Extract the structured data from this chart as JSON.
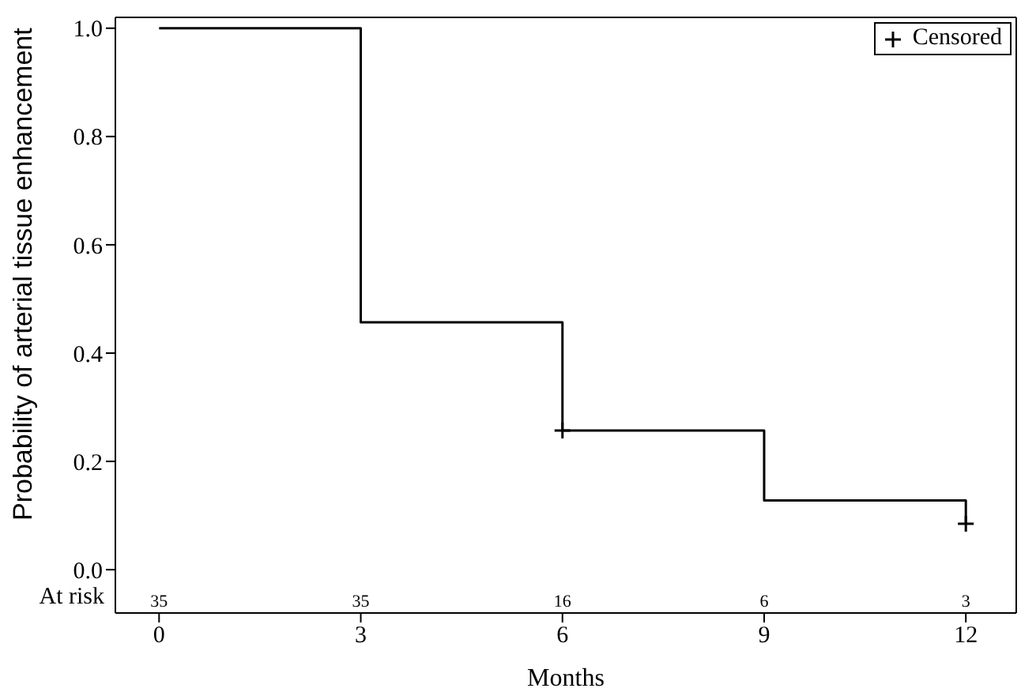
{
  "chart_data": {
    "type": "step",
    "xlabel": "Months",
    "ylabel": "Probability of arterial tissue enhancement",
    "x": [
      0,
      3,
      6,
      9,
      12
    ],
    "series": [
      {
        "color": "#000000",
        "marker": "none",
        "line_style": "solid",
        "values": [
          1,
          0.457,
          0.257,
          0.128,
          0.085
        ]
      },
      {
        "type": "scatter",
        "name": "Censored",
        "color": "#000000",
        "marker": "cross",
        "x": [
          6,
          12
        ],
        "values": [
          0.257,
          0.085
        ]
      }
    ],
    "xlim": [
      -0.65,
      12.75
    ],
    "xticks": [
      0,
      3,
      6,
      9,
      12
    ],
    "ylim": [
      -0.08,
      1.02
    ],
    "yticks": [
      {
        "value": 0,
        "label": "0.0"
      },
      {
        "value": 0.2,
        "label": "0.2"
      },
      {
        "value": 0.4,
        "label": "0.4"
      },
      {
        "value": 0.6,
        "label": "0.6"
      },
      {
        "value": 0.8,
        "label": "0.8"
      },
      {
        "value": 1,
        "label": "1.0"
      }
    ],
    "grid": false,
    "legend": "top right",
    "annotations": [
      "At risk",
      "35",
      "35",
      "16",
      "6",
      "3"
    ]
  }
}
